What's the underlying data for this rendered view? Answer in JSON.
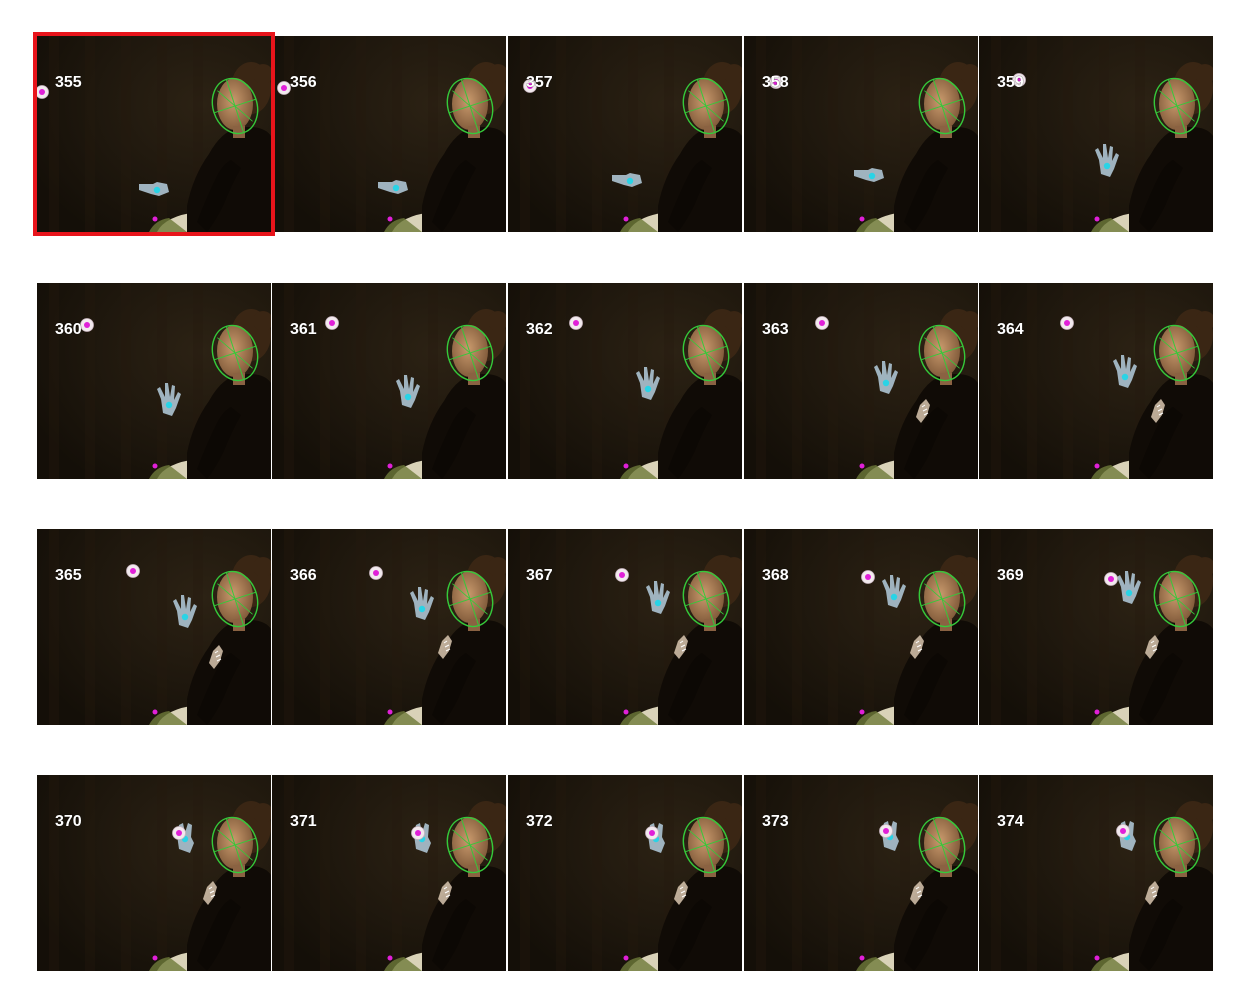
{
  "highlight_color": "#e8141b",
  "highlighted_frame": "355",
  "colors": {
    "background_dark": "#1c150d",
    "face_ellipse": "#35c93a",
    "hand_marker": "#29d3e6",
    "ball_marker": "#e020d8",
    "glove": "#9fb3bf",
    "ball": "#f2e9ee",
    "stool": "#d9d2b8"
  },
  "frames": [
    {
      "label": "355"
    },
    {
      "label": "356"
    },
    {
      "label": "357"
    },
    {
      "label": "358"
    },
    {
      "label": "359"
    },
    {
      "label": "360"
    },
    {
      "label": "361"
    },
    {
      "label": "362"
    },
    {
      "label": "363"
    },
    {
      "label": "364"
    },
    {
      "label": "365"
    },
    {
      "label": "366"
    },
    {
      "label": "367"
    },
    {
      "label": "368"
    },
    {
      "label": "369"
    },
    {
      "label": "370"
    },
    {
      "label": "371"
    },
    {
      "label": "372"
    },
    {
      "label": "373"
    },
    {
      "label": "374"
    }
  ]
}
